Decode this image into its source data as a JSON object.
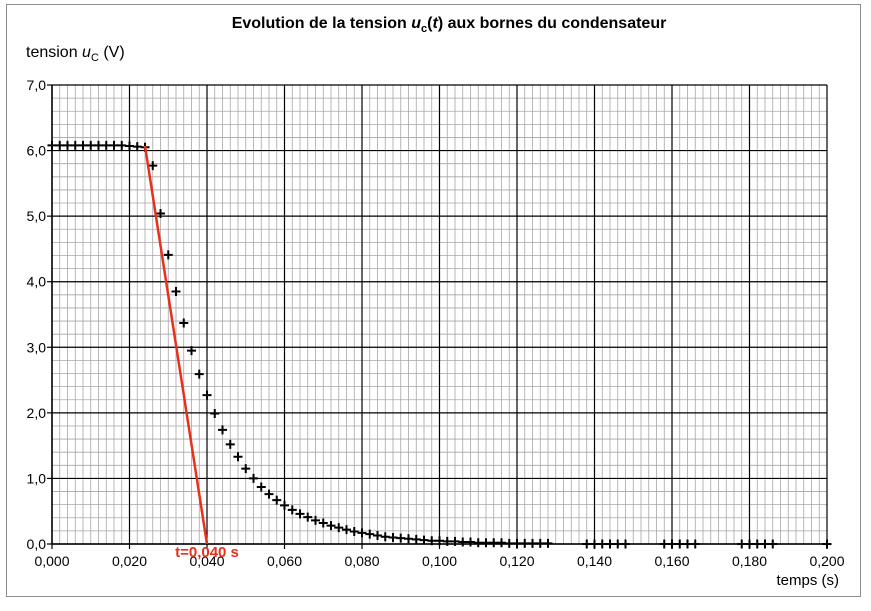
{
  "chart_data": {
    "type": "scatter",
    "title": {
      "prefix": "Evolution de la tension ",
      "var": "u",
      "var_sub": "c",
      "arg": "t",
      "suffix": " aux bornes du condensateur"
    },
    "ylabel": {
      "prefix": "tension ",
      "var": "u",
      "var_sub": "C",
      "suffix": " (V)"
    },
    "xlabel": "temps (s)",
    "xlim": [
      0,
      0.2
    ],
    "ylim": [
      0,
      7
    ],
    "grid": true,
    "grid_minor_x": 0.002,
    "grid_minor_y": 0.2,
    "xticks": [
      0,
      0.02,
      0.04,
      0.06,
      0.08,
      0.1,
      0.12,
      0.14,
      0.16,
      0.18,
      0.2
    ],
    "xtick_labels": [
      "0,000",
      "0,020",
      "0,040",
      "0,060",
      "0,080",
      "0,100",
      "0,120",
      "0,140",
      "0,160",
      "0,180",
      "0,200"
    ],
    "yticks": [
      0,
      1,
      2,
      3,
      4,
      5,
      6,
      7
    ],
    "ytick_labels": [
      "0,0",
      "1,0",
      "2,0",
      "3,0",
      "4,0",
      "5,0",
      "6,0",
      "7,0"
    ],
    "series": [
      {
        "marker": "plus",
        "color": "#000000",
        "x": [
          0.0,
          0.002,
          0.004,
          0.006,
          0.008,
          0.01,
          0.012,
          0.014,
          0.016,
          0.018,
          0.02,
          0.022,
          0.024,
          0.026,
          0.028,
          0.03,
          0.032,
          0.034,
          0.036,
          0.038,
          0.04,
          0.042,
          0.044,
          0.046,
          0.048,
          0.05,
          0.052,
          0.054,
          0.056,
          0.058,
          0.06,
          0.062,
          0.064,
          0.066,
          0.068,
          0.07,
          0.072,
          0.074,
          0.076,
          0.078,
          0.08,
          0.082,
          0.084,
          0.086,
          0.088,
          0.09,
          0.092,
          0.094,
          0.096,
          0.098,
          0.1,
          0.102,
          0.104,
          0.106,
          0.108,
          0.11,
          0.112,
          0.114,
          0.116,
          0.118,
          0.12,
          0.122,
          0.124,
          0.126,
          0.128,
          0.138,
          0.14,
          0.142,
          0.144,
          0.146,
          0.148,
          0.158,
          0.16,
          0.162,
          0.164,
          0.166,
          0.178,
          0.18,
          0.182,
          0.184,
          0.186,
          0.2
        ],
        "y": [
          6.08,
          6.08,
          6.08,
          6.08,
          6.08,
          6.08,
          6.08,
          6.08,
          6.08,
          6.08,
          6.07,
          6.06,
          6.05,
          5.77,
          5.04,
          4.41,
          3.85,
          3.37,
          2.95,
          2.59,
          2.27,
          1.99,
          1.74,
          1.52,
          1.33,
          1.15,
          1.0,
          0.87,
          0.76,
          0.67,
          0.59,
          0.52,
          0.46,
          0.41,
          0.36,
          0.32,
          0.28,
          0.25,
          0.22,
          0.19,
          0.17,
          0.15,
          0.13,
          0.11,
          0.1,
          0.09,
          0.08,
          0.07,
          0.06,
          0.05,
          0.05,
          0.04,
          0.04,
          0.03,
          0.03,
          0.02,
          0.02,
          0.02,
          0.02,
          0.01,
          0.01,
          0.01,
          0.01,
          0.01,
          0.01,
          0.0,
          0.0,
          0.0,
          0.0,
          0.0,
          0.0,
          0.0,
          0.0,
          0.0,
          0.0,
          0.0,
          0.0,
          0.0,
          0.0,
          0.0,
          0.0,
          0.0
        ]
      },
      {
        "type": "line",
        "color": "#e8301c",
        "x": [
          0.024,
          0.04
        ],
        "y": [
          6.07,
          0.0
        ]
      }
    ],
    "annotations": [
      {
        "text": "t=0,040 s",
        "x": 0.04,
        "y": 0.0,
        "color": "#e8301c"
      }
    ]
  }
}
